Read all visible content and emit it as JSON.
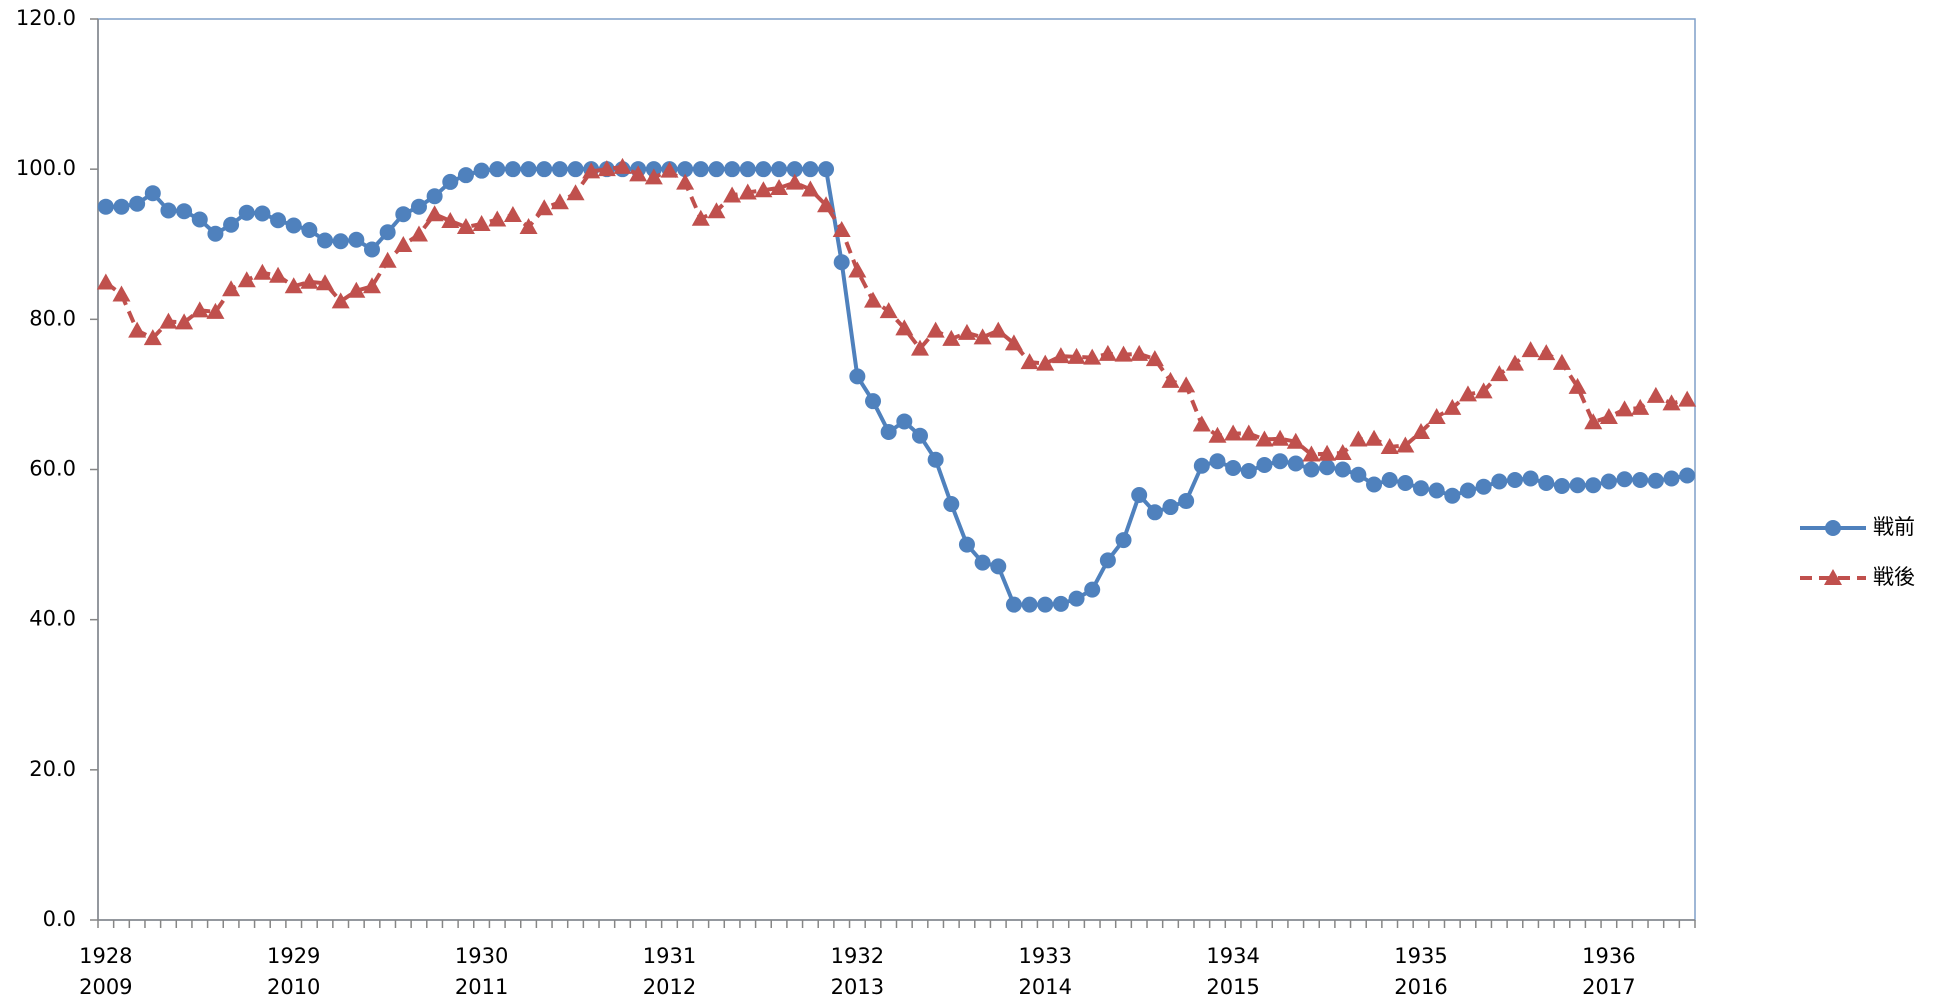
{
  "chart_data": {
    "type": "line",
    "categories": [
      "1928",
      null,
      null,
      null,
      null,
      null,
      null,
      null,
      null,
      null,
      null,
      null,
      "1929",
      null,
      null,
      null,
      null,
      null,
      null,
      null,
      null,
      null,
      null,
      null,
      "1930",
      null,
      null,
      null,
      null,
      null,
      null,
      null,
      null,
      null,
      null,
      null,
      "1931",
      null,
      null,
      null,
      null,
      null,
      null,
      null,
      null,
      null,
      null,
      null,
      "1932",
      null,
      null,
      null,
      null,
      null,
      null,
      null,
      null,
      null,
      null,
      null,
      "1933",
      null,
      null,
      null,
      null,
      null,
      null,
      null,
      null,
      null,
      null,
      null,
      "1934",
      null,
      null,
      null,
      null,
      null,
      null,
      null,
      null,
      null,
      null,
      null,
      "1935",
      null,
      null,
      null,
      null,
      null,
      null,
      null,
      null,
      null,
      null,
      null,
      "1936",
      null,
      null,
      null,
      null,
      null
    ],
    "categories_2": [
      "2009",
      null,
      null,
      null,
      null,
      null,
      null,
      null,
      null,
      null,
      null,
      null,
      "2010",
      null,
      null,
      null,
      null,
      null,
      null,
      null,
      null,
      null,
      null,
      null,
      "2011",
      null,
      null,
      null,
      null,
      null,
      null,
      null,
      null,
      null,
      null,
      null,
      "2012",
      null,
      null,
      null,
      null,
      null,
      null,
      null,
      null,
      null,
      null,
      null,
      "2013",
      null,
      null,
      null,
      null,
      null,
      null,
      null,
      null,
      null,
      null,
      null,
      "2014",
      null,
      null,
      null,
      null,
      null,
      null,
      null,
      null,
      null,
      null,
      null,
      "2015",
      null,
      null,
      null,
      null,
      null,
      null,
      null,
      null,
      null,
      null,
      null,
      "2016",
      null,
      null,
      null,
      null,
      null,
      null,
      null,
      null,
      null,
      null,
      null,
      "2017",
      null,
      null,
      null,
      null,
      null
    ],
    "series": [
      {
        "name": "戦前",
        "color": "#4f81bd",
        "marker": "circle",
        "dash": false,
        "values": [
          95.0,
          95.0,
          95.4,
          96.8,
          94.5,
          94.4,
          93.3,
          91.4,
          92.6,
          94.2,
          94.1,
          93.2,
          92.5,
          91.9,
          90.5,
          90.4,
          90.6,
          89.3,
          91.6,
          94.0,
          95.0,
          96.4,
          98.3,
          99.2,
          99.8,
          100,
          100,
          100,
          100,
          100,
          100,
          100,
          100,
          100,
          100,
          100,
          100,
          100,
          100,
          100,
          100,
          100,
          100,
          100,
          100,
          100,
          100,
          87.6,
          72.4,
          69.1,
          65.0,
          66.4,
          64.5,
          61.3,
          55.4,
          50.0,
          47.6,
          47.1,
          42.0,
          42.0,
          42.0,
          42.1,
          42.8,
          44.0,
          47.9,
          50.6,
          56.6,
          54.3,
          55.0,
          55.8,
          60.5,
          61.1,
          60.2,
          59.8,
          60.6,
          61.1,
          60.8,
          60.0,
          60.3,
          60.0,
          59.3,
          58.0,
          58.6,
          58.2,
          57.5,
          57.2,
          56.5,
          57.2,
          57.7,
          58.4,
          58.6,
          58.8,
          58.2,
          57.8,
          57.9,
          57.9,
          58.4,
          58.7,
          58.6,
          58.5,
          58.8,
          59.2
        ]
      },
      {
        "name": "戦後",
        "color": "#c0504d",
        "marker": "triangle",
        "dash": true,
        "values": [
          84.9,
          83.3,
          78.5,
          77.5,
          79.7,
          79.6,
          81.2,
          81.0,
          84.0,
          85.2,
          86.2,
          85.8,
          84.4,
          85.0,
          84.8,
          82.4,
          83.8,
          84.4,
          87.8,
          89.9,
          91.3,
          94.0,
          93.1,
          92.3,
          92.7,
          93.3,
          93.9,
          92.3,
          94.8,
          95.6,
          96.8,
          99.7,
          100.0,
          100.3,
          99.3,
          98.9,
          99.8,
          98.2,
          93.4,
          94.4,
          96.5,
          96.9,
          97.2,
          97.5,
          98.2,
          97.3,
          95.2,
          91.9,
          86.5,
          82.5,
          81.1,
          78.8,
          76.1,
          78.5,
          77.4,
          78.2,
          77.6,
          78.5,
          76.8,
          74.3,
          74.1,
          75.1,
          75.0,
          74.9,
          75.4,
          75.3,
          75.4,
          74.7,
          71.8,
          71.2,
          66.0,
          64.5,
          64.8,
          64.8,
          64.0,
          64.1,
          63.7,
          62.0,
          62.1,
          62.2,
          64.0,
          64.1,
          63.0,
          63.2,
          65.0,
          67.0,
          68.2,
          70.0,
          70.4,
          72.7,
          74.1,
          75.9,
          75.5,
          74.2,
          71.0,
          66.3,
          67.0,
          68.0,
          68.2,
          69.8,
          68.8,
          69.3
        ]
      }
    ],
    "ylim": [
      0,
      120
    ],
    "yticks": [
      {
        "value": 0,
        "label": "0.0"
      },
      {
        "value": 20,
        "label": "20.0"
      },
      {
        "value": 40,
        "label": "40.0"
      },
      {
        "value": 60,
        "label": "60.0"
      },
      {
        "value": 80,
        "label": "80.0"
      },
      {
        "value": 100,
        "label": "100.0"
      },
      {
        "value": 120,
        "label": "120.0"
      }
    ],
    "grid": false,
    "legend": "right"
  }
}
